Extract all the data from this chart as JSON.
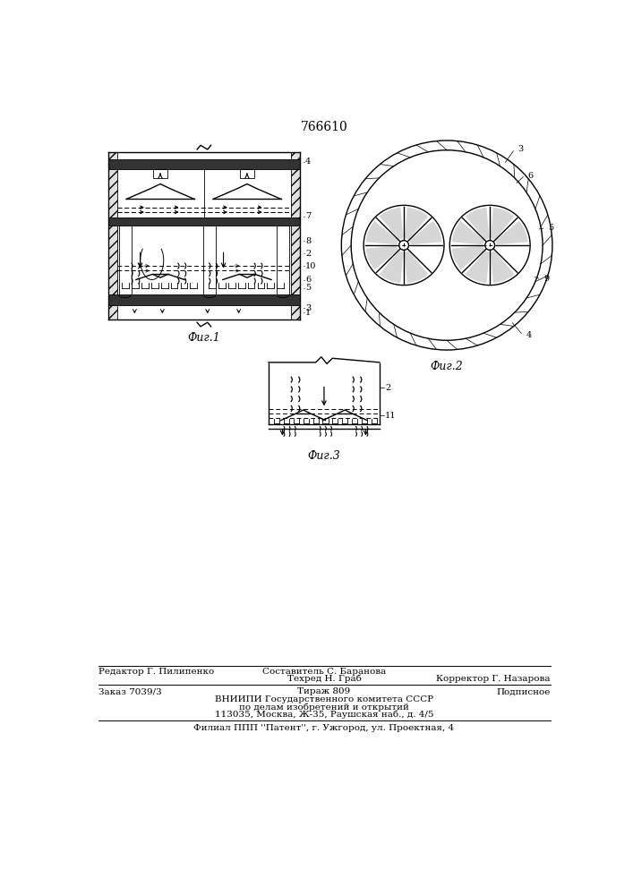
{
  "patent_number": "766610",
  "fig1_label": "Фиг.1",
  "fig2_label": "Фиг.2",
  "fig3_label": "Фиг.3",
  "footer_editor": "Редактор Г. Пилипенко",
  "footer_sostavitel": "Составитель С. Баранова",
  "footer_tehred": "Техред Н. Граб",
  "footer_korrektor": "Корректор Г. Назарова",
  "footer_zakaz": "Заказ 7039/3",
  "footer_tirazh": "Тираж 809",
  "footer_podpisnoe": "Подписное",
  "footer_vnipi1": "ВНИИПИ Государственного комитета СССР",
  "footer_vnipi2": "по делам изобретений и открытий",
  "footer_vnipi3": "113035, Москва, Ж-35, Раушская наб., д. 4/5",
  "footer_filial": "Филиал ППП ''Патент'', г. Ужгород, ул. Проектная, 4",
  "bg_color": "#ffffff",
  "line_color": "#000000"
}
